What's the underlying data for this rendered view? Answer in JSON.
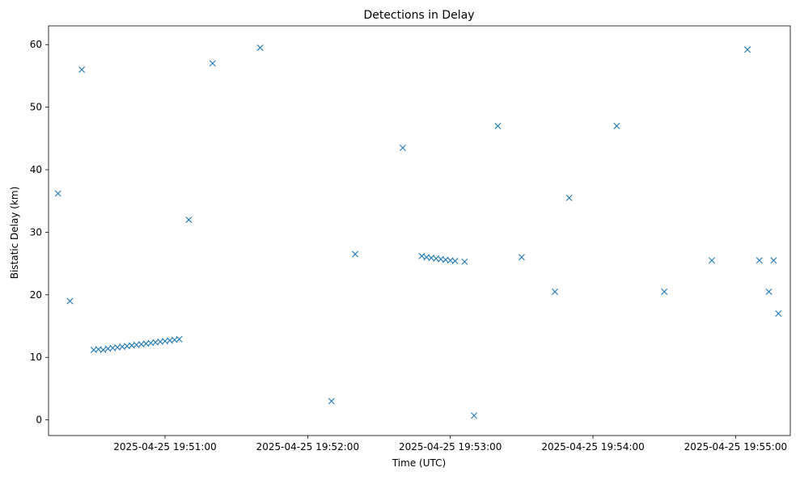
{
  "chart_data": {
    "type": "scatter",
    "title": "Detections in Delay",
    "xlabel": "Time (UTC)",
    "ylabel": "Bistatic Delay (km)",
    "xlim": [
      "2025-04-25 19:50:11",
      "2025-04-25 19:55:23"
    ],
    "ylim": [
      -2.5,
      63
    ],
    "x_ticks": [
      "2025-04-25 19:51:00",
      "2025-04-25 19:52:00",
      "2025-04-25 19:53:00",
      "2025-04-25 19:54:00",
      "2025-04-25 19:55:00"
    ],
    "y_ticks": [
      0,
      10,
      20,
      30,
      40,
      50,
      60
    ],
    "marker": "x",
    "series": [
      {
        "color": "#1f77b4",
        "x": [
          "2025-04-25 19:50:30",
          "2025-04-25 19:50:32",
          "2025-04-25 19:50:34",
          "2025-04-25 19:50:36",
          "2025-04-25 19:50:38",
          "2025-04-25 19:50:40",
          "2025-04-25 19:50:42",
          "2025-04-25 19:50:44",
          "2025-04-25 19:50:46",
          "2025-04-25 19:50:48",
          "2025-04-25 19:50:50",
          "2025-04-25 19:50:52",
          "2025-04-25 19:50:54",
          "2025-04-25 19:50:56",
          "2025-04-25 19:50:58",
          "2025-04-25 19:51:00",
          "2025-04-25 19:51:02",
          "2025-04-25 19:51:04",
          "2025-04-25 19:51:06",
          "2025-04-25 19:52:48",
          "2025-04-25 19:52:50",
          "2025-04-25 19:52:52",
          "2025-04-25 19:52:54",
          "2025-04-25 19:52:56",
          "2025-04-25 19:52:58",
          "2025-04-25 19:53:00",
          "2025-04-25 19:53:02",
          "2025-04-25 19:53:06",
          "2025-04-25 19:53:20",
          "2025-04-25 19:53:30",
          "2025-04-25 19:53:44",
          "2025-04-25 19:54:10",
          "2025-04-25 19:55:05",
          "2025-04-25 19:55:10",
          "2025-04-25 19:55:14",
          "2025-04-25 19:55:16",
          "2025-04-25 19:50:15",
          "2025-04-25 19:50:25",
          "2025-04-25 19:51:20",
          "2025-04-25 19:53:10",
          "2025-04-25 19:54:30",
          "2025-04-25 19:55:18",
          "2025-04-25 19:51:40",
          "2025-04-25 19:52:20",
          "2025-04-25 19:52:40",
          "2025-04-25 19:53:50",
          "2025-04-25 19:54:50",
          "2025-04-25 19:50:20",
          "2025-04-25 19:51:10",
          "2025-04-25 19:52:10"
        ],
        "y": [
          11.2,
          11.3,
          11.2,
          11.4,
          11.5,
          11.6,
          11.7,
          11.8,
          11.9,
          12.0,
          12.1,
          12.2,
          12.3,
          12.4,
          12.5,
          12.6,
          12.7,
          12.8,
          12.9,
          26.2,
          26.0,
          25.9,
          25.8,
          25.7,
          25.6,
          25.5,
          25.4,
          25.3,
          47.0,
          26.0,
          20.5,
          47.0,
          59.2,
          25.5,
          20.5,
          25.5,
          36.2,
          56.0,
          57.0,
          0.7,
          20.5,
          17.0,
          59.5,
          26.5,
          43.5,
          35.5,
          25.5,
          19.0,
          32.0,
          3.0
        ]
      }
    ]
  }
}
